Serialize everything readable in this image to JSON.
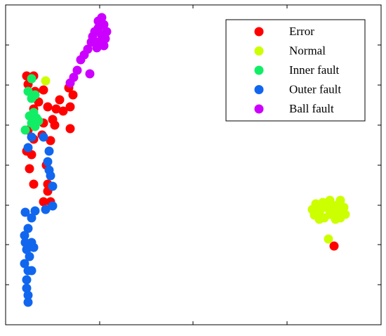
{
  "chart_data": {
    "type": "scatter",
    "xlim": [
      0,
      535
    ],
    "ylim": [
      0,
      455
    ],
    "xticks": [
      134,
      267,
      401
    ],
    "yticks": [
      57,
      114,
      170,
      227,
      284,
      341,
      398
    ],
    "legend": "upper right",
    "series": [
      {
        "name": "Error",
        "color": "#ff0000",
        "x": [
          30,
          40,
          32,
          42,
          54,
          47,
          40,
          60,
          72,
          82,
          92,
          96,
          90,
          77,
          67,
          54,
          32,
          40,
          52,
          64,
          30,
          37,
          34,
          92,
          70,
          58,
          40,
          60,
          60,
          54,
          64,
          468
        ],
        "values": [
          354,
          354,
          342,
          332,
          334,
          317,
          307,
          310,
          307,
          304,
          310,
          327,
          337,
          320,
          292,
          287,
          277,
          264,
          270,
          262,
          247,
          242,
          222,
          279,
          284,
          227,
          200,
          200,
          190,
          175,
          175,
          112
        ]
      },
      {
        "name": "Normal",
        "color": "#ccff00",
        "x": [
          57,
          460,
          437,
          442,
          447,
          452,
          457,
          462,
          467,
          472,
          477,
          482,
          484,
          477,
          470,
          462,
          454,
          447,
          440,
          450,
          464,
          474
        ],
        "values": [
          347,
          122,
          164,
          172,
          160,
          174,
          167,
          177,
          162,
          170,
          177,
          167,
          157,
          152,
          150,
          157,
          152,
          150,
          156,
          166,
          168,
          162
        ]
      },
      {
        "name": "Inner fault",
        "color": "#11ee66",
        "x": [
          37,
          32,
          37,
          42,
          40,
          44,
          37,
          47,
          28,
          42,
          34
        ],
        "values": [
          350,
          332,
          322,
          327,
          302,
          294,
          287,
          290,
          277,
          282,
          297
        ]
      },
      {
        "name": "Outer fault",
        "color": "#1166ee",
        "x": [
          54,
          62,
          60,
          62,
          64,
          67,
          67,
          57,
          42,
          37,
          28,
          32,
          27,
          37,
          30,
          34,
          27,
          32,
          37,
          30,
          30,
          32,
          32,
          37,
          32,
          40,
          28
        ],
        "values": [
          267,
          247,
          232,
          220,
          212,
          197,
          169,
          164,
          162,
          152,
          160,
          137,
          127,
          117,
          107,
          97,
          87,
          77,
          77,
          64,
          52,
          42,
          32,
          267,
          252,
          110,
          117
        ]
      },
      {
        "name": "Ball fault",
        "color": "#cc00ff",
        "x": [
          137,
          140,
          132,
          127,
          137,
          142,
          132,
          122,
          117,
          112,
          107,
          102,
          97,
          92,
          132,
          144,
          124,
          140,
          130,
          120
        ],
        "values": [
          437,
          427,
          422,
          417,
          412,
          407,
          402,
          402,
          392,
          384,
          377,
          362,
          352,
          344,
          432,
          417,
          410,
          397,
          394,
          357
        ]
      }
    ]
  }
}
